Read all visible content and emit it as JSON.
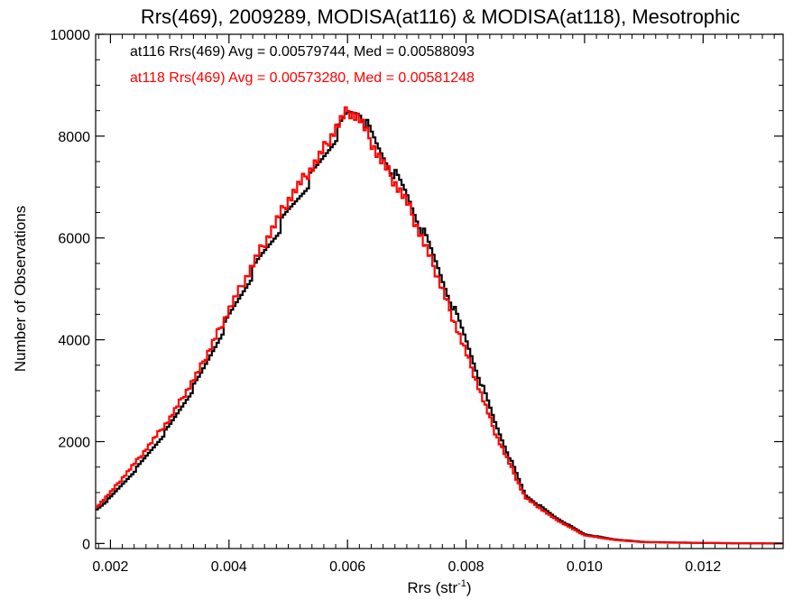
{
  "chart_data": {
    "type": "line",
    "title": "Rrs(469), 2009289, MODISA(at116) & MODISA(at118), Mesotrophic",
    "xlabel": "Rrs (str",
    "xlabel_sup": "-1",
    "xlabel_close": ")",
    "ylabel": "Number of Observations",
    "xlim": [
      0.00175,
      0.01335
    ],
    "ylim": [
      -100,
      10000
    ],
    "xticks": [
      0.002,
      0.004,
      0.006,
      0.008,
      0.01,
      0.012
    ],
    "xtick_labels": [
      "0.002",
      "0.004",
      "0.006",
      "0.008",
      "0.010",
      "0.012"
    ],
    "yticks": [
      0,
      2000,
      4000,
      6000,
      8000,
      10000
    ],
    "ytick_labels": [
      "0",
      "2000",
      "4000",
      "6000",
      "8000",
      "10000"
    ],
    "grid": false,
    "annotations": [
      {
        "text": "at116 Rrs(469) Avg = 0.00579744, Med = 0.00588093",
        "color": "#000000"
      },
      {
        "text": "at118 Rrs(469) Avg = 0.00573280, Med = 0.00581248",
        "color": "#ff0000"
      }
    ],
    "series": [
      {
        "color": "#000000",
        "x": [
          0.00175,
          0.002,
          0.0025,
          0.003,
          0.0035,
          0.004,
          0.0045,
          0.005,
          0.0055,
          0.0058,
          0.006,
          0.0062,
          0.0065,
          0.007,
          0.0075,
          0.008,
          0.0085,
          0.009,
          0.0095,
          0.01,
          0.0105,
          0.011,
          0.0115,
          0.012,
          0.0125,
          0.01335
        ],
        "y": [
          650,
          900,
          1550,
          2300,
          3250,
          4450,
          5550,
          6500,
          7400,
          8000,
          8450,
          8500,
          7800,
          6850,
          5500,
          4000,
          2350,
          950,
          520,
          180,
          80,
          30,
          20,
          10,
          5,
          0
        ]
      },
      {
        "color": "#ff0000",
        "x": [
          0.00175,
          0.002,
          0.0025,
          0.003,
          0.0035,
          0.004,
          0.0045,
          0.005,
          0.0055,
          0.0058,
          0.006,
          0.0062,
          0.0065,
          0.007,
          0.0075,
          0.008,
          0.0085,
          0.009,
          0.0095,
          0.01,
          0.0105,
          0.011,
          0.0115,
          0.012,
          0.0125,
          0.01335
        ],
        "y": [
          700,
          1000,
          1700,
          2450,
          3400,
          4600,
          5700,
          6750,
          7550,
          8150,
          8500,
          8350,
          7650,
          6700,
          5300,
          3750,
          2150,
          900,
          480,
          160,
          70,
          25,
          15,
          10,
          5,
          0
        ]
      }
    ]
  }
}
